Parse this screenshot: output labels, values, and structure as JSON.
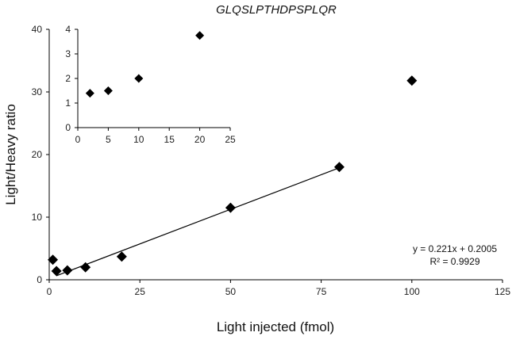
{
  "chart_data": [
    {
      "type": "scatter",
      "title": "GLQSLPTHDPSPLQR",
      "xlabel": "Light injected (fmol)",
      "ylabel": "Light/Heavy ratio",
      "xlim": [
        0,
        125
      ],
      "ylim": [
        0,
        40
      ],
      "xticks": [
        0,
        25,
        50,
        75,
        100,
        125
      ],
      "yticks": [
        0,
        10,
        20,
        30,
        40
      ],
      "grid": false,
      "marker": "diamond",
      "marker_color": "#000000",
      "series": [
        {
          "x": [
            1,
            2,
            5,
            10,
            20,
            50,
            80,
            100
          ],
          "y": [
            3.2,
            1.4,
            1.5,
            2.0,
            3.7,
            11.5,
            18.0,
            31.8
          ]
        }
      ],
      "fit": {
        "type": "linear",
        "slope": 0.221,
        "intercept": 0.2005,
        "x_range": [
          2,
          80
        ],
        "equation": "y = 0.221x + 0.2005",
        "r2": "R² = 0.9929"
      }
    },
    {
      "type": "scatter",
      "role": "inset",
      "xlim": [
        0,
        25
      ],
      "ylim": [
        0,
        4
      ],
      "xticks": [
        0,
        5,
        10,
        15,
        20,
        25
      ],
      "yticks": [
        0,
        1,
        2,
        3,
        4
      ],
      "grid": false,
      "series": [
        {
          "x": [
            2,
            5,
            10,
            20
          ],
          "y": [
            1.4,
            1.5,
            2.0,
            3.75
          ]
        }
      ]
    }
  ]
}
